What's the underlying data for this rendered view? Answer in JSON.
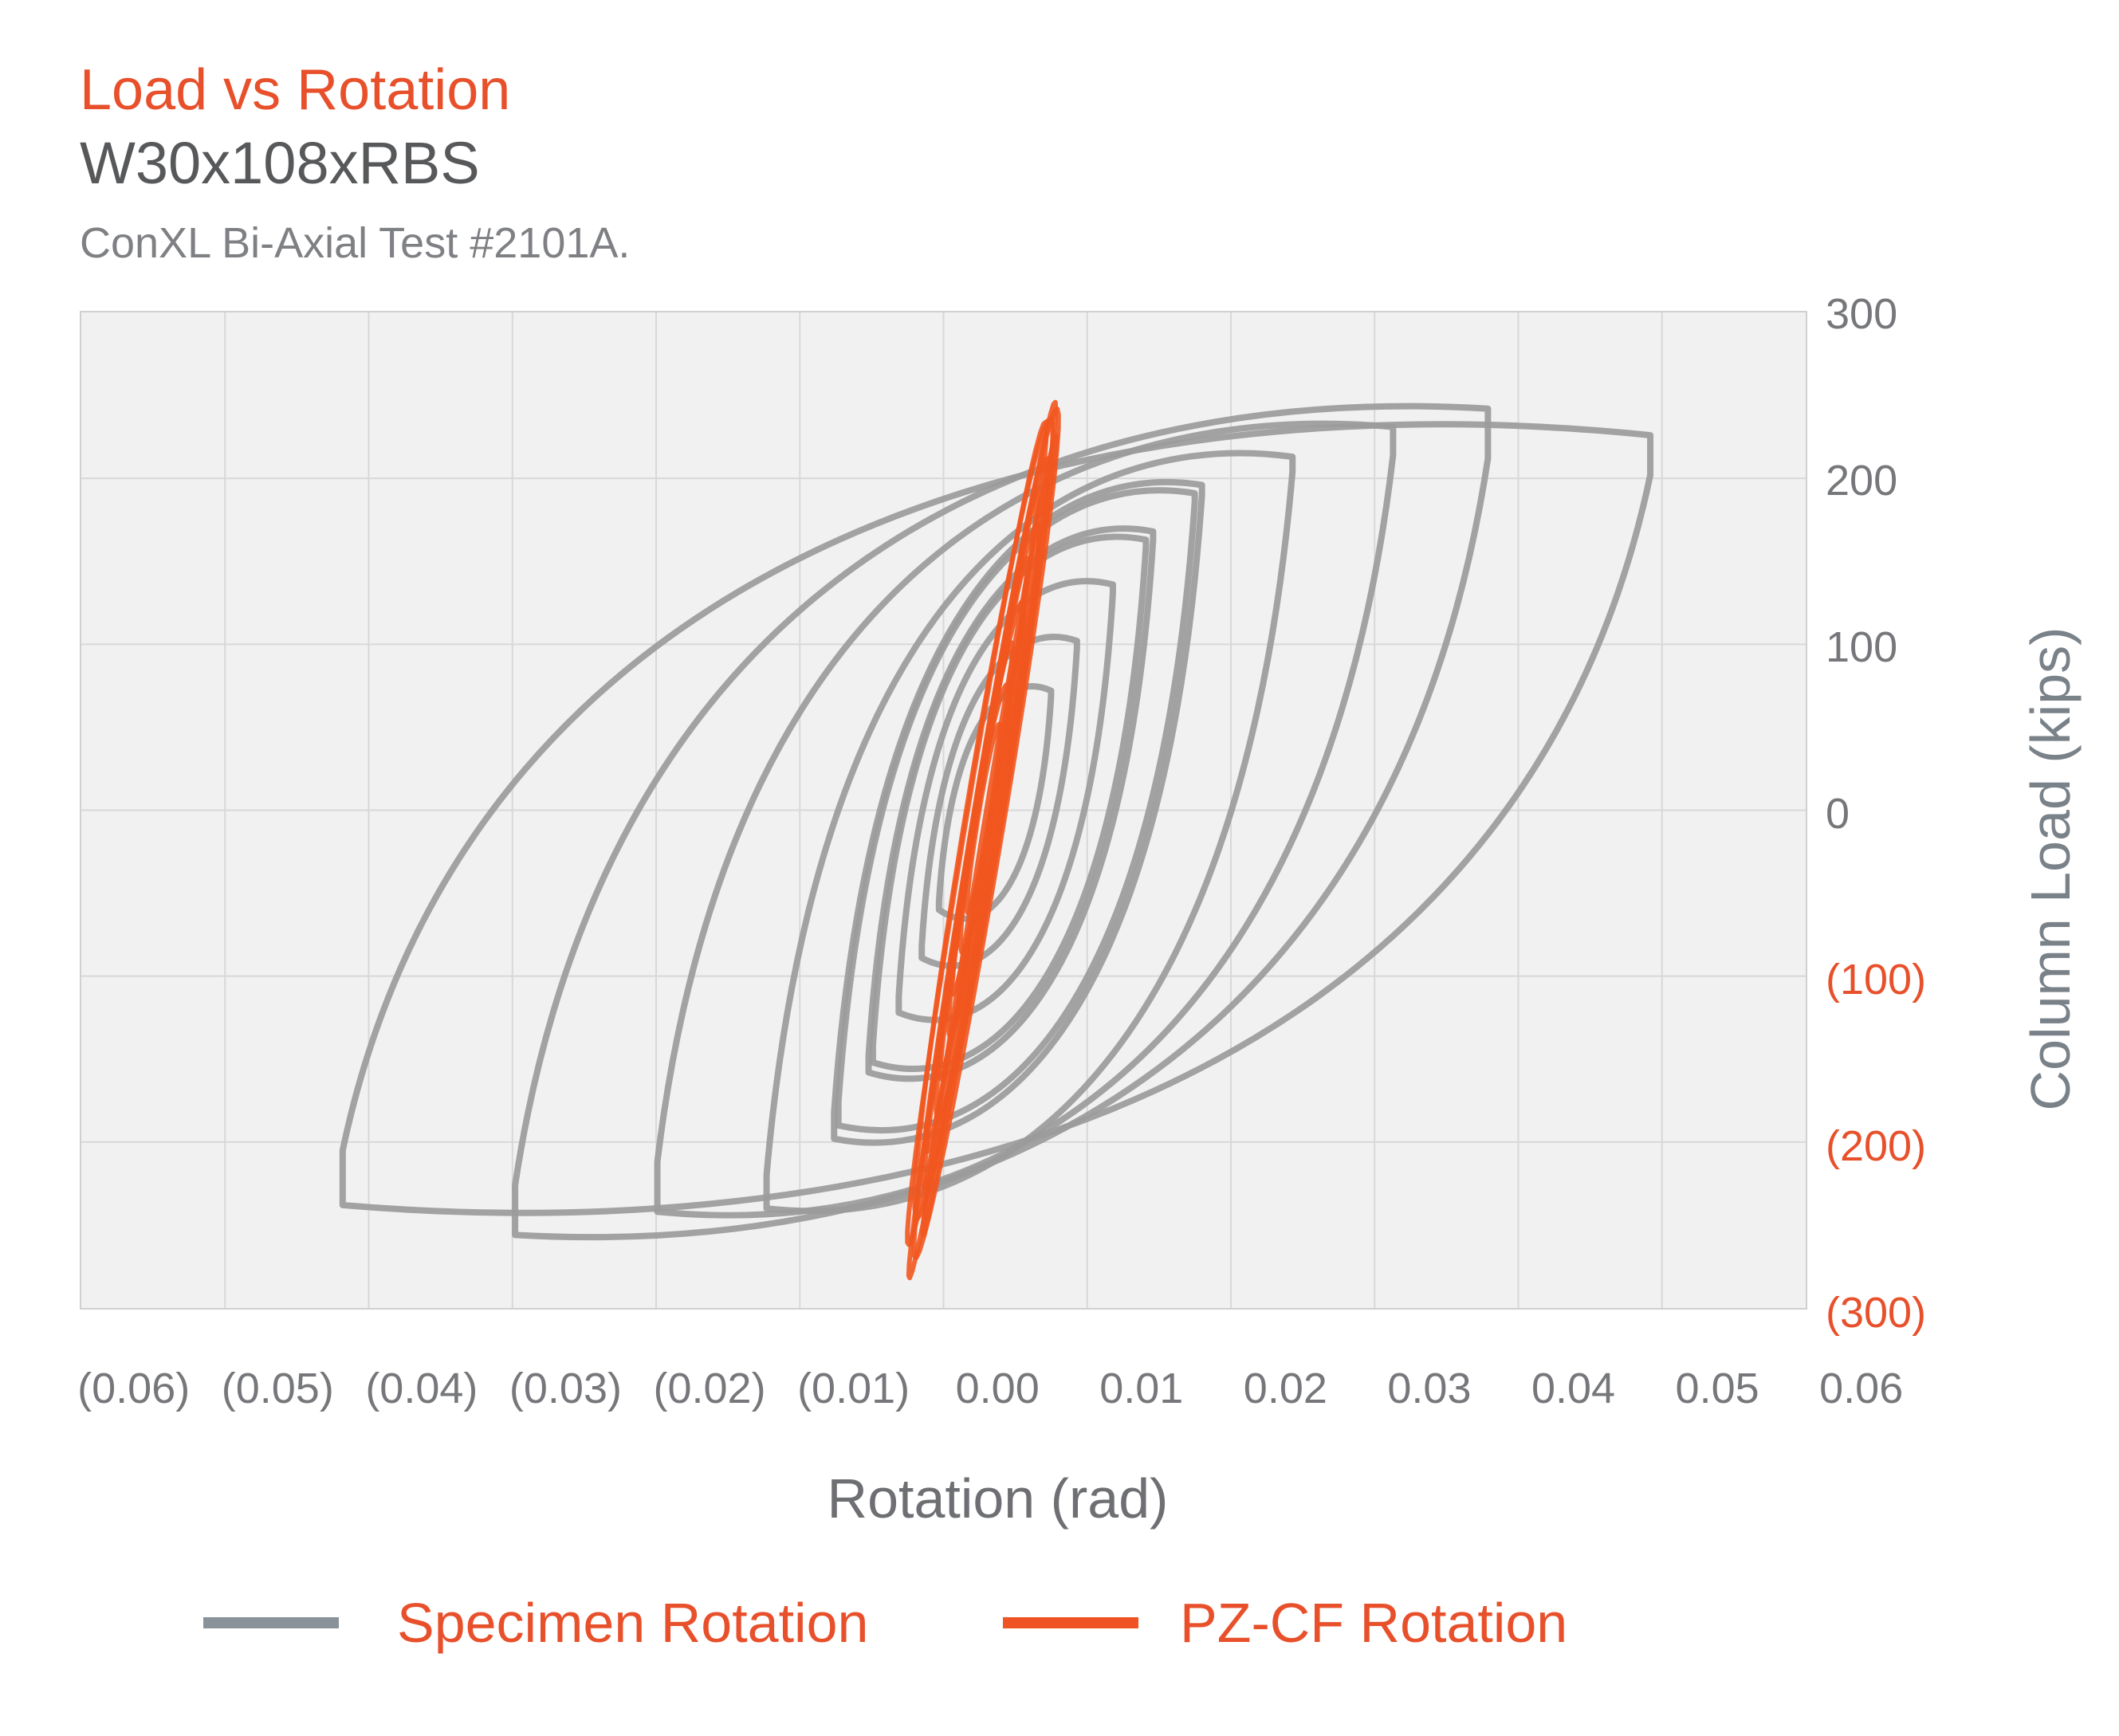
{
  "header": {
    "title": "Load vs Rotation",
    "subtitle": "W30x108xRBS",
    "caption": "ConXL Bi-Axial Test #2101A."
  },
  "colors": {
    "accent_orange": "#E8502B",
    "orange_line": "#F2571F",
    "gray_line": "#9B9B9B",
    "legend_gray_swatch": "#8A9299",
    "subtitle_gray": "#57585A",
    "caption_gray": "#7E8083",
    "tick_gray": "#76777A",
    "x_axis_title_gray": "#6E6F72",
    "y_axis_title_gray": "#7A8289",
    "plot_bg": "#F1F1F2",
    "grid_line": "#D8D8D9"
  },
  "chart_data": {
    "type": "line",
    "title": "Load vs Rotation",
    "xlabel": "Rotation (rad)",
    "ylabel": "Column Load (kips)",
    "xlim": [
      -0.065,
      0.065
    ],
    "ylim": [
      -300,
      300
    ],
    "grid": true,
    "legend_position": "bottom",
    "x_ticks": [
      {
        "label": "(0.06)",
        "value": -0.06
      },
      {
        "label": "(0.05)",
        "value": -0.05
      },
      {
        "label": "(0.04)",
        "value": -0.04
      },
      {
        "label": "(0.03)",
        "value": -0.03
      },
      {
        "label": "(0.02)",
        "value": -0.02
      },
      {
        "label": "(0.01)",
        "value": -0.01
      },
      {
        "label": "0.00",
        "value": 0.0
      },
      {
        "label": "0.01",
        "value": 0.01
      },
      {
        "label": "0.02",
        "value": 0.02
      },
      {
        "label": "0.03",
        "value": 0.03
      },
      {
        "label": "0.04",
        "value": 0.04
      },
      {
        "label": "0.05",
        "value": 0.05
      },
      {
        "label": "0.06",
        "value": 0.06
      }
    ],
    "y_ticks": [
      {
        "label": "300",
        "value": 300,
        "color": "#76777A"
      },
      {
        "label": "200",
        "value": 200,
        "color": "#76777A"
      },
      {
        "label": "100",
        "value": 100,
        "color": "#76777A"
      },
      {
        "label": "0",
        "value": 0,
        "color": "#76777A"
      },
      {
        "label": "(100)",
        "value": -100,
        "color": "#E8502B"
      },
      {
        "label": "(200)",
        "value": -200,
        "color": "#E8502B"
      },
      {
        "label": "(300)",
        "value": -300,
        "color": "#E8502B"
      }
    ],
    "series": [
      {
        "name": "Specimen Rotation",
        "color": "#9B9B9B",
        "shape": "hysteresis-loops",
        "stroke_width": 8,
        "loops": [
          {
            "xl": -0.0445,
            "ylt": -205,
            "ylb": -238,
            "xr": 0.0465,
            "yrt": 226,
            "yrb": 202,
            "top": 250,
            "bot": -256
          },
          {
            "xl": -0.0325,
            "ylt": -226,
            "ylb": -256,
            "xr": 0.0352,
            "yrt": 242,
            "yrb": 212,
            "top": 247,
            "bot": -260
          },
          {
            "xl": -0.0226,
            "ylt": -212,
            "ylb": -242,
            "xr": 0.0286,
            "yrt": 231,
            "yrb": 214,
            "top": 238,
            "bot": -250
          },
          {
            "xl": -0.015,
            "ylt": -220,
            "ylb": -240,
            "xr": 0.0216,
            "yrt": 213,
            "yrb": 204,
            "top": 221,
            "bot": -245
          },
          {
            "xl": -0.0103,
            "ylt": -182,
            "ylb": -198,
            "xr": 0.0153,
            "yrt": 196,
            "yrb": 190,
            "top": 201,
            "bot": -206
          },
          {
            "xl": -0.01,
            "ylt": -176,
            "ylb": -190,
            "xr": 0.0148,
            "yrt": 191,
            "yrb": 186,
            "top": 196,
            "bot": -200
          },
          {
            "xl": -0.0079,
            "ylt": -148,
            "ylb": -158,
            "xr": 0.0119,
            "yrt": 168,
            "yrb": 163,
            "top": 172,
            "bot": -170
          },
          {
            "xl": -0.0076,
            "ylt": -142,
            "ylb": -152,
            "xr": 0.0114,
            "yrt": 163,
            "yrb": 159,
            "top": 167,
            "bot": -164
          },
          {
            "xl": -0.0058,
            "ylt": -112,
            "ylb": -122,
            "xr": 0.0091,
            "yrt": 136,
            "yrb": 131,
            "top": 140,
            "bot": -134
          },
          {
            "xl": -0.0042,
            "ylt": -82,
            "ylb": -89,
            "xr": 0.0066,
            "yrt": 102,
            "yrb": 98,
            "top": 106,
            "bot": -100
          },
          {
            "xl": -0.003,
            "ylt": -55,
            "ylb": -60,
            "xr": 0.0048,
            "yrt": 72,
            "yrb": 69,
            "top": 75,
            "bot": -70
          }
        ]
      },
      {
        "name": "PZ-CF Rotation",
        "color": "#F2571F",
        "shape": "sheared-ellipses",
        "stroke_width": 6,
        "shear_slope": 1.92e-05,
        "loops": [
          [
            246,
            282,
            0.0007,
            0.00035
          ],
          [
            242,
            270,
            0.0011,
            0.00055
          ],
          [
            234,
            262,
            0.0009,
            -0.0001
          ],
          [
            226,
            256,
            0.0005,
            0.0008
          ],
          [
            236,
            246,
            0.0013,
            0.0002
          ],
          [
            212,
            228,
            0.0008,
            0.0004
          ],
          [
            192,
            206,
            0.0006,
            0.0001
          ],
          [
            172,
            186,
            0.001,
            0.0005
          ],
          [
            152,
            162,
            0.0005,
            0.0002
          ],
          [
            126,
            136,
            0.0008,
            0.0004
          ],
          [
            101,
            111,
            0.0005,
            0.0001
          ],
          [
            76,
            86,
            0.0007,
            0.0003
          ],
          [
            52,
            62,
            0.0004,
            0.0002
          ]
        ]
      }
    ]
  },
  "legend": {
    "items": [
      {
        "label": "Specimen Rotation",
        "swatch_color": "#8A9299",
        "text_color": "#E8502B"
      },
      {
        "label": "PZ-CF Rotation",
        "swatch_color": "#F05323",
        "text_color": "#E8502B"
      }
    ]
  }
}
